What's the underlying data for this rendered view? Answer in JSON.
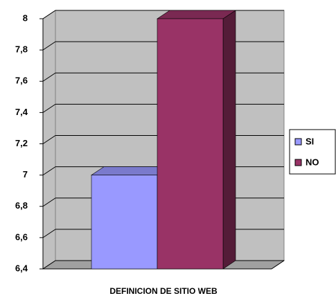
{
  "chart_data": {
    "type": "bar3d",
    "categories": [
      "DEFINICION DE SITIO WEB"
    ],
    "series": [
      {
        "name": "SI",
        "color": "#9999ff",
        "values": [
          7
        ]
      },
      {
        "name": "NO",
        "color": "#993366",
        "values": [
          8
        ]
      }
    ],
    "ylim": [
      6.4,
      8
    ],
    "yticks": [
      {
        "value": 6.4,
        "label": "6,4"
      },
      {
        "value": 6.6,
        "label": "6,6"
      },
      {
        "value": 6.8,
        "label": "6,8"
      },
      7,
      {
        "value": 7.2,
        "label": "7,2"
      },
      {
        "value": 7.4,
        "label": "7,4"
      },
      {
        "value": 7.6,
        "label": "7,6"
      },
      {
        "value": 7.8,
        "label": "7,8"
      },
      8
    ],
    "grid": true,
    "legend": "right"
  }
}
